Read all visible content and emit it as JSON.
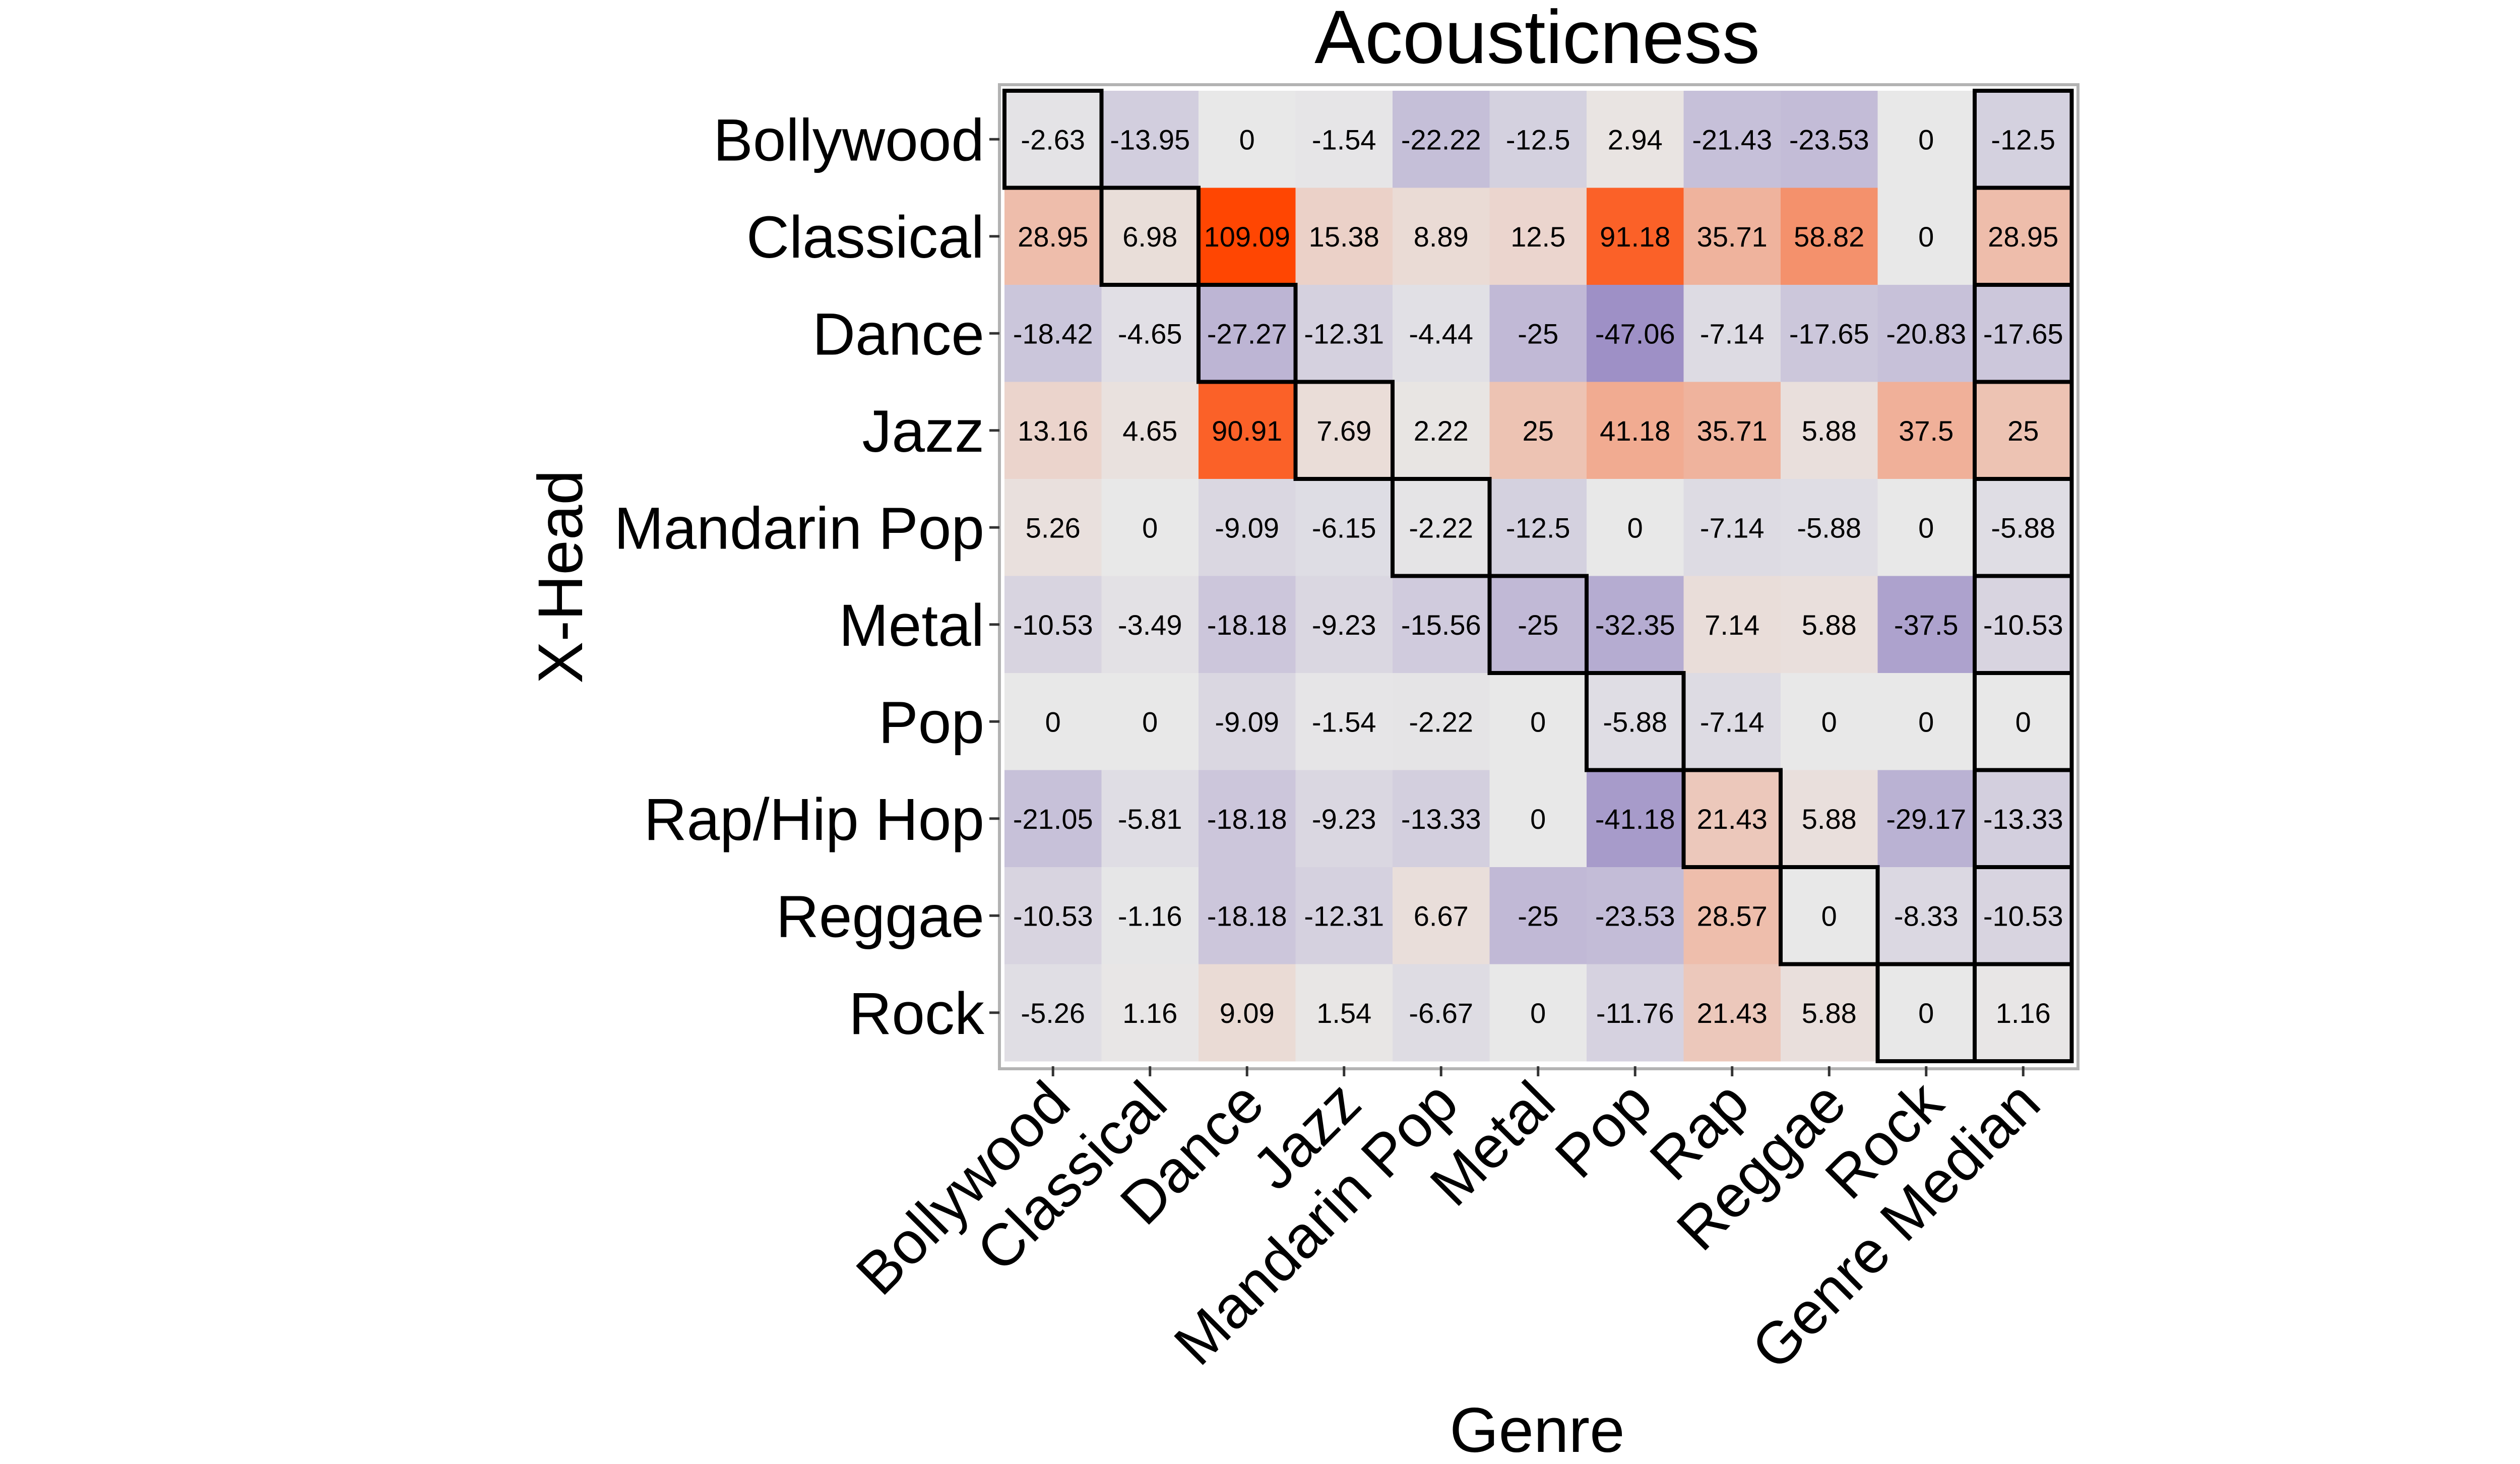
{
  "chart_data": {
    "type": "heatmap",
    "title": "Acousticness",
    "xlabel": "Genre",
    "ylabel": "X-Head",
    "x_categories": [
      "Bollywood",
      "Classical",
      "Dance",
      "Jazz",
      "Mandarin Pop",
      "Metal",
      "Pop",
      "Rap",
      "Reggae",
      "Rock",
      "Genre Median"
    ],
    "y_categories": [
      "Bollywood",
      "Classical",
      "Dance",
      "Jazz",
      "Mandarin Pop",
      "Metal",
      "Pop",
      "Rap/Hip Hop",
      "Reggae",
      "Rock"
    ],
    "values": [
      [
        -2.63,
        -13.95,
        0,
        -1.54,
        -22.22,
        -12.5,
        2.94,
        -21.43,
        -23.53,
        0,
        -12.5
      ],
      [
        28.95,
        6.98,
        109.09,
        15.38,
        8.89,
        12.5,
        91.18,
        35.71,
        58.82,
        0,
        28.95
      ],
      [
        -18.42,
        -4.65,
        -27.27,
        -12.31,
        -4.44,
        -25,
        -47.06,
        -7.14,
        -17.65,
        -20.83,
        -17.65
      ],
      [
        13.16,
        4.65,
        90.91,
        7.69,
        2.22,
        25,
        41.18,
        35.71,
        5.88,
        37.5,
        25
      ],
      [
        5.26,
        0,
        -9.09,
        -6.15,
        -2.22,
        -12.5,
        0,
        -7.14,
        -5.88,
        0,
        -5.88
      ],
      [
        -10.53,
        -3.49,
        -18.18,
        -9.23,
        -15.56,
        -25,
        -32.35,
        7.14,
        5.88,
        -37.5,
        -10.53
      ],
      [
        0,
        0,
        -9.09,
        -1.54,
        -2.22,
        0,
        -5.88,
        -7.14,
        0,
        0,
        0
      ],
      [
        -21.05,
        -5.81,
        -18.18,
        -9.23,
        -13.33,
        0,
        -41.18,
        21.43,
        5.88,
        -29.17,
        -13.33
      ],
      [
        -10.53,
        -1.16,
        -18.18,
        -12.31,
        6.67,
        -25,
        -23.53,
        28.57,
        0,
        -8.33,
        -10.53
      ],
      [
        -5.26,
        1.16,
        9.09,
        1.54,
        -6.67,
        0,
        -11.76,
        21.43,
        5.88,
        0,
        1.16
      ]
    ],
    "highlighted": "diagonal cells and Genre Median column outlined",
    "colors": {
      "negative": "#8a78bd",
      "neutral": "#e8e8e8",
      "positive": "#ff4500",
      "panel_border": "#b3b3b3",
      "outline": "#000000"
    },
    "color_limits": [
      -60,
      110
    ],
    "legend": "none",
    "grid": false
  }
}
